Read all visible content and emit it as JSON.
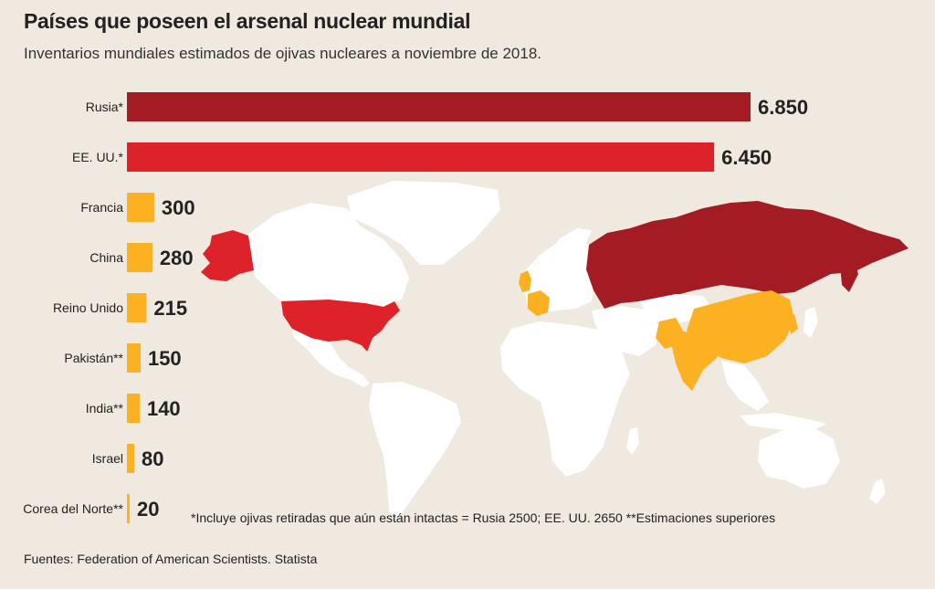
{
  "header": {
    "title": "Países que poseen el arsenal nuclear mundial",
    "subtitle": "Inventarios mundiales estimados de ojivas nucleares a noviembre de 2018."
  },
  "footnote": "*Incluye ojivas retiradas que aún están intactas = Rusia 2500; EE. UU. 2650  **Estimaciones superiores",
  "source": "Fuentes: Federation of American Scientists. Statista",
  "colors": {
    "background": "#efe9df",
    "russia": "#a31c24",
    "usa": "#de2229",
    "others": "#fbb122",
    "map_land": "#ffffff"
  },
  "chart_data": {
    "type": "bar",
    "orientation": "horizontal",
    "categories": [
      "Rusia*",
      "EE. UU.*",
      "Francia",
      "China",
      "Reino Unido",
      "Pakistán**",
      "India**",
      "Israel",
      "Corea del Norte**"
    ],
    "values": [
      6850,
      6450,
      300,
      280,
      215,
      150,
      140,
      80,
      20
    ],
    "value_labels": [
      "6.850",
      "6.450",
      "300",
      "280",
      "215",
      "150",
      "140",
      "80",
      "20"
    ],
    "bar_colors": [
      "#a31c24",
      "#de2229",
      "#fbb122",
      "#fbb122",
      "#fbb122",
      "#fbb122",
      "#fbb122",
      "#fbb122",
      "#fbb122"
    ],
    "title": "Países que poseen el arsenal nuclear mundial",
    "xlabel": "",
    "ylabel": "",
    "xlim": [
      0,
      6850
    ],
    "grid": false,
    "legend": "none"
  }
}
